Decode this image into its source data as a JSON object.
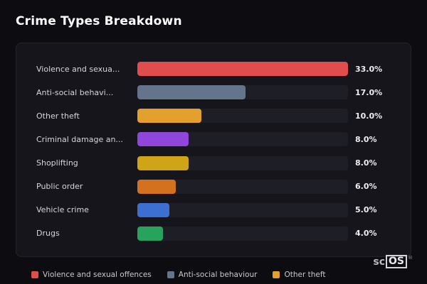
{
  "page": {
    "title": "Crime Types Breakdown"
  },
  "chart_data": {
    "type": "bar",
    "orientation": "horizontal",
    "title": "Crime Types Breakdown",
    "categories": [
      "Violence and sexua...",
      "Anti-social behavi...",
      "Other theft",
      "Criminal damage an...",
      "Shoplifting",
      "Public order",
      "Vehicle crime",
      "Drugs"
    ],
    "values": [
      33.0,
      17.0,
      10.0,
      8.0,
      8.0,
      6.0,
      5.0,
      4.0
    ],
    "value_labels": [
      "33.0%",
      "17.0%",
      "10.0%",
      "8.0%",
      "8.0%",
      "6.0%",
      "5.0%",
      "4.0%"
    ],
    "bar_colors": [
      "#df4d4d",
      "#64748b",
      "#e3a02d",
      "#9146db",
      "#d0a417",
      "#d4711f",
      "#3d6fd2",
      "#27a35d"
    ],
    "track_color": "#1e1e26",
    "xlim": [
      0,
      33
    ],
    "grid": false,
    "legend_position": "bottom",
    "legend": [
      {
        "label": "Violence and sexual offences",
        "color": "#df4d4d"
      },
      {
        "label": "Anti-social behaviour",
        "color": "#64748b"
      },
      {
        "label": "Other theft",
        "color": "#e3a02d"
      }
    ]
  },
  "logo": {
    "prefix": "sc",
    "boxed": "OS",
    "reg": "®"
  }
}
